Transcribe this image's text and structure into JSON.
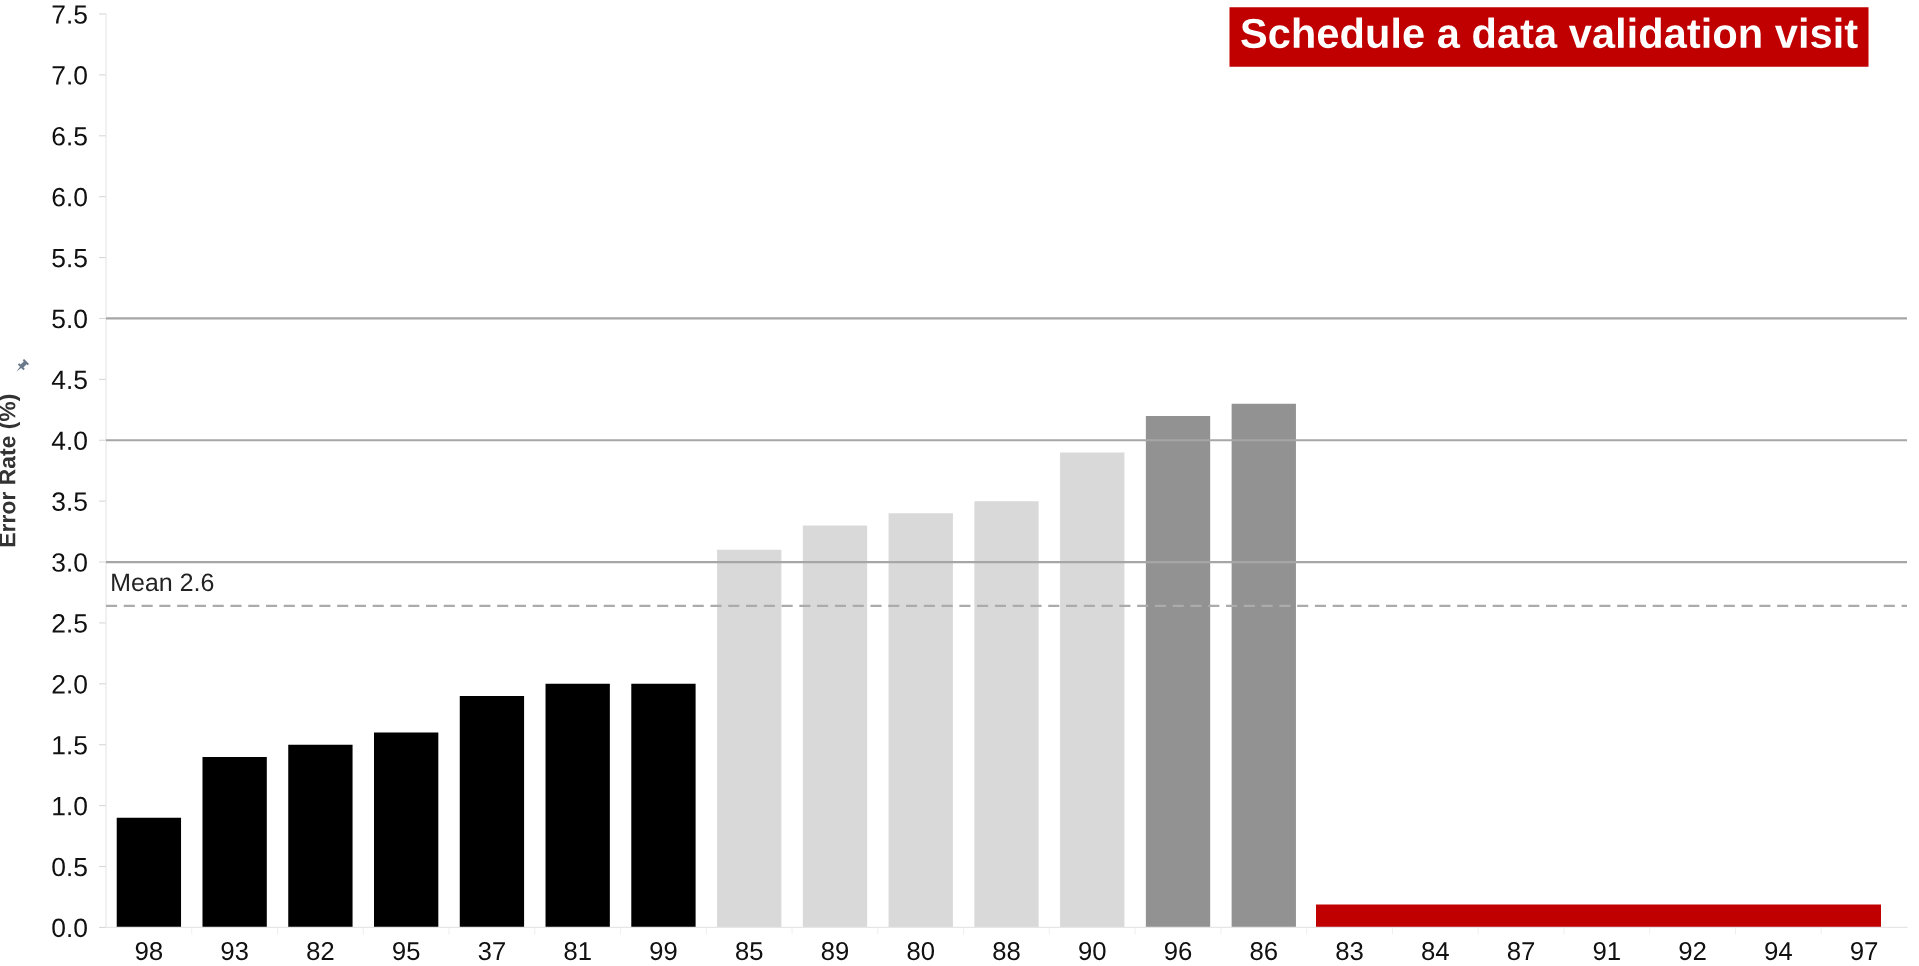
{
  "chart_data": {
    "type": "bar",
    "ylabel": "Error Rate (%)",
    "categories": [
      "98",
      "93",
      "82",
      "95",
      "37",
      "81",
      "99",
      "85",
      "89",
      "80",
      "88",
      "90",
      "96",
      "86",
      "83",
      "84",
      "87",
      "91",
      "92",
      "94",
      "97"
    ],
    "series": [
      {
        "values": [
          0.9,
          1.4,
          1.5,
          1.6,
          1.9,
          2.0,
          2.0,
          3.1,
          3.3,
          3.4,
          3.5,
          3.9,
          4.2,
          4.3,
          null,
          null,
          null,
          null,
          null,
          null,
          null
        ],
        "colors": [
          "#000000",
          "#000000",
          "#000000",
          "#000000",
          "#000000",
          "#000000",
          "#000000",
          "#d9d9d9",
          "#d9d9d9",
          "#d9d9d9",
          "#d9d9d9",
          "#d9d9d9",
          "#929292",
          "#929292",
          null,
          null,
          null,
          null,
          null,
          null,
          null
        ]
      }
    ],
    "ylim": [
      0,
      7.5
    ],
    "yticks": [
      {
        "value": 0,
        "label": "0.0"
      },
      0.5,
      {
        "value": 1,
        "label": "1.0"
      },
      1.5,
      {
        "value": 2,
        "label": "2.0"
      },
      2.5,
      {
        "value": 3,
        "label": "3.0"
      },
      3.5,
      {
        "value": 4,
        "label": "4.0"
      },
      4.5,
      {
        "value": 5,
        "label": "5.0"
      },
      5.5,
      {
        "value": 6,
        "label": "6.0"
      },
      6.5,
      {
        "value": 7,
        "label": "7.0"
      },
      7.5
    ],
    "ref_lines": [
      {
        "axis": "y",
        "value": 3,
        "color": "#a6a6a6"
      },
      {
        "axis": "y",
        "value": 4,
        "color": "#a6a6a6"
      },
      {
        "axis": "y",
        "value": 5,
        "color": "#a6a6a6"
      },
      {
        "axis": "y",
        "value": 2.64,
        "label": "Mean 2.6",
        "line_style": "dashed",
        "color": "#ababab"
      }
    ],
    "annotations": [
      "Schedule a data validation visit"
    ],
    "grid": false
  }
}
